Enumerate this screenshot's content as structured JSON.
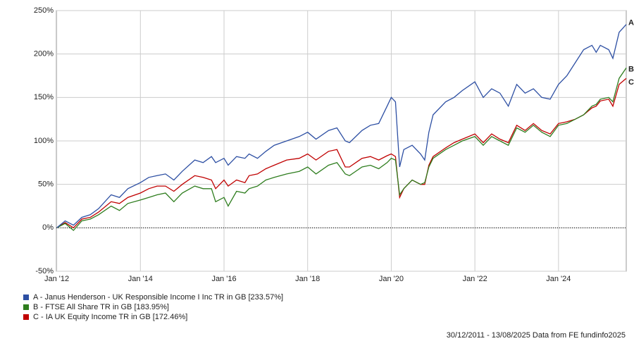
{
  "chart_data": {
    "type": "line",
    "x": [
      2012.0,
      2012.2,
      2012.4,
      2012.6,
      2012.8,
      2013.0,
      2013.3,
      2013.5,
      2013.7,
      2014.0,
      2014.2,
      2014.4,
      2014.6,
      2014.8,
      2015.0,
      2015.3,
      2015.5,
      2015.7,
      2015.8,
      2016.0,
      2016.1,
      2016.3,
      2016.5,
      2016.6,
      2016.8,
      2017.0,
      2017.2,
      2017.5,
      2017.8,
      2018.0,
      2018.2,
      2018.5,
      2018.7,
      2018.9,
      2019.0,
      2019.3,
      2019.5,
      2019.7,
      2019.9,
      2020.0,
      2020.1,
      2020.2,
      2020.3,
      2020.5,
      2020.7,
      2020.8,
      2020.9,
      2021.0,
      2021.3,
      2021.5,
      2021.7,
      2022.0,
      2022.2,
      2022.4,
      2022.6,
      2022.8,
      2023.0,
      2023.2,
      2023.4,
      2023.6,
      2023.8,
      2024.0,
      2024.2,
      2024.4,
      2024.6,
      2024.8,
      2024.9,
      2025.0,
      2025.2,
      2025.3,
      2025.45,
      2025.62
    ],
    "series": [
      {
        "name": "A - Janus Henderson - UK Responsible Income I Inc TR in GB [233.57%]",
        "tag": "A",
        "color": "#2d4fa3",
        "values": [
          0,
          8,
          3,
          12,
          15,
          22,
          38,
          35,
          45,
          52,
          58,
          60,
          62,
          55,
          65,
          78,
          75,
          82,
          75,
          80,
          72,
          82,
          80,
          85,
          80,
          88,
          95,
          100,
          105,
          110,
          102,
          112,
          115,
          100,
          98,
          112,
          118,
          120,
          140,
          150,
          145,
          70,
          90,
          95,
          85,
          78,
          110,
          130,
          145,
          150,
          158,
          168,
          150,
          160,
          155,
          140,
          165,
          155,
          160,
          150,
          148,
          165,
          175,
          190,
          205,
          210,
          202,
          210,
          205,
          195,
          225,
          234
        ]
      },
      {
        "name": "B - FTSE All Share TR in GB [183.95%]",
        "tag": "B",
        "color": "#2e7d1e",
        "values": [
          0,
          5,
          -3,
          8,
          10,
          15,
          25,
          20,
          28,
          32,
          35,
          38,
          40,
          30,
          40,
          48,
          45,
          45,
          30,
          35,
          25,
          42,
          40,
          45,
          48,
          55,
          58,
          62,
          65,
          70,
          62,
          72,
          75,
          62,
          60,
          70,
          72,
          68,
          75,
          80,
          78,
          38,
          45,
          55,
          50,
          52,
          70,
          80,
          90,
          95,
          100,
          105,
          95,
          105,
          100,
          95,
          115,
          110,
          118,
          110,
          105,
          118,
          120,
          125,
          130,
          140,
          142,
          148,
          150,
          145,
          172,
          184
        ]
      },
      {
        "name": "C - IA UK Equity Income TR in GB [172.46%]",
        "tag": "C",
        "color": "#c00000",
        "values": [
          0,
          6,
          0,
          10,
          12,
          18,
          30,
          28,
          35,
          40,
          45,
          48,
          48,
          42,
          50,
          60,
          58,
          55,
          45,
          55,
          48,
          55,
          52,
          60,
          62,
          68,
          72,
          78,
          80,
          85,
          78,
          88,
          90,
          70,
          70,
          80,
          82,
          78,
          83,
          85,
          82,
          35,
          45,
          55,
          50,
          50,
          72,
          82,
          92,
          98,
          102,
          108,
          98,
          108,
          102,
          98,
          118,
          112,
          120,
          112,
          108,
          120,
          122,
          125,
          130,
          138,
          140,
          146,
          148,
          140,
          165,
          172
        ]
      }
    ],
    "xlim": [
      2011.99,
      2025.62
    ],
    "xticks": [
      {
        "value": 2012,
        "label": "Jan '12"
      },
      {
        "value": 2014,
        "label": "Jan '14"
      },
      {
        "value": 2016,
        "label": "Jan '16"
      },
      {
        "value": 2018,
        "label": "Jan '18"
      },
      {
        "value": 2020,
        "label": "Jan '20"
      },
      {
        "value": 2022,
        "label": "Jan '22"
      },
      {
        "value": 2024,
        "label": "Jan '24"
      }
    ],
    "ylim": [
      -50,
      250
    ],
    "yticks": [
      {
        "value": -50,
        "label": "-50%"
      },
      {
        "value": 0,
        "label": "0%"
      },
      {
        "value": 50,
        "label": "50%"
      },
      {
        "value": 100,
        "label": "100%"
      },
      {
        "value": 150,
        "label": "150%"
      },
      {
        "value": 200,
        "label": "200%"
      },
      {
        "value": 250,
        "label": "250%"
      }
    ],
    "grid": true,
    "footnote": "30/12/2011 - 13/08/2025 Data from FE fundinfo2025"
  }
}
